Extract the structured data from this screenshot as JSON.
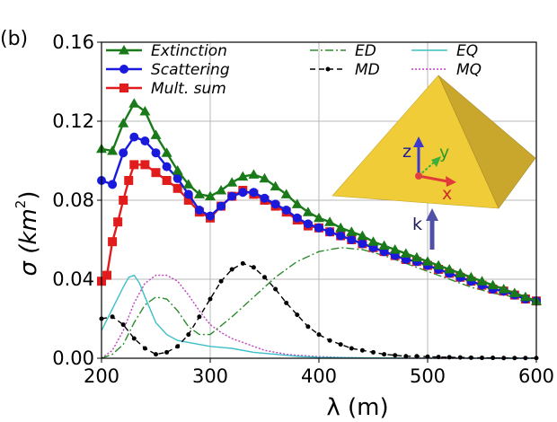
{
  "panel_label": "(b)",
  "chart_data": {
    "type": "line",
    "xlabel": "λ (m)",
    "ylabel_main": "σ (km",
    "ylabel_sup": "2",
    "ylabel_close": ")",
    "xlim": [
      200,
      600
    ],
    "ylim": [
      0,
      0.16
    ],
    "x_ticks": [
      200,
      300,
      400,
      500,
      600
    ],
    "x_tick_labels": [
      "200",
      "300",
      "400",
      "500",
      "600"
    ],
    "y_ticks": [
      0,
      0.04,
      0.08,
      0.12,
      0.16
    ],
    "y_tick_labels": [
      "0.00",
      "0.04",
      "0.08",
      "0.12",
      "0.16"
    ],
    "grid": true,
    "legend_placement": "top",
    "series": [
      {
        "name": "Extinction",
        "color": "#1a7a1a",
        "style": "solid",
        "marker": "triangle",
        "x": [
          200,
          210,
          220,
          230,
          240,
          250,
          260,
          270,
          280,
          290,
          300,
          310,
          320,
          330,
          340,
          350,
          360,
          370,
          380,
          390,
          400,
          410,
          420,
          430,
          440,
          450,
          460,
          470,
          480,
          490,
          500,
          510,
          520,
          530,
          540,
          550,
          560,
          570,
          580,
          590,
          600
        ],
        "y": [
          0.106,
          0.105,
          0.119,
          0.129,
          0.125,
          0.113,
          0.104,
          0.095,
          0.088,
          0.083,
          0.082,
          0.085,
          0.089,
          0.092,
          0.093,
          0.091,
          0.087,
          0.083,
          0.078,
          0.074,
          0.071,
          0.069,
          0.066,
          0.064,
          0.062,
          0.059,
          0.057,
          0.055,
          0.053,
          0.051,
          0.049,
          0.047,
          0.045,
          0.043,
          0.041,
          0.039,
          0.037,
          0.035,
          0.033,
          0.031,
          0.029
        ]
      },
      {
        "name": "Scattering",
        "color": "#1a1adc",
        "style": "solid",
        "marker": "circle",
        "x": [
          200,
          210,
          220,
          230,
          240,
          250,
          260,
          270,
          280,
          290,
          300,
          310,
          320,
          330,
          340,
          350,
          360,
          370,
          380,
          390,
          400,
          410,
          420,
          430,
          440,
          450,
          460,
          470,
          480,
          490,
          500,
          510,
          520,
          530,
          540,
          550,
          560,
          570,
          580,
          590,
          600
        ],
        "y": [
          0.09,
          0.088,
          0.104,
          0.112,
          0.11,
          0.104,
          0.097,
          0.091,
          0.083,
          0.075,
          0.072,
          0.077,
          0.082,
          0.084,
          0.084,
          0.081,
          0.078,
          0.075,
          0.071,
          0.068,
          0.066,
          0.064,
          0.062,
          0.06,
          0.058,
          0.056,
          0.054,
          0.052,
          0.05,
          0.049,
          0.047,
          0.045,
          0.043,
          0.041,
          0.039,
          0.037,
          0.035,
          0.034,
          0.032,
          0.03,
          0.029
        ]
      },
      {
        "name": "Mult. sum",
        "color": "#e11c1c",
        "style": "solid",
        "marker": "square",
        "x": [
          200,
          205,
          210,
          215,
          220,
          225,
          230,
          240,
          250,
          260,
          270,
          280,
          290,
          300,
          310,
          320,
          330,
          340,
          350,
          360,
          370,
          380,
          390,
          400,
          410,
          420,
          430,
          440,
          450,
          460,
          470,
          480,
          490,
          500,
          510,
          520,
          530,
          540,
          550,
          560,
          570,
          580,
          590,
          600
        ],
        "y": [
          0.039,
          0.042,
          0.059,
          0.069,
          0.08,
          0.09,
          0.098,
          0.098,
          0.094,
          0.09,
          0.086,
          0.08,
          0.074,
          0.071,
          0.077,
          0.082,
          0.085,
          0.083,
          0.08,
          0.077,
          0.074,
          0.07,
          0.067,
          0.066,
          0.064,
          0.062,
          0.06,
          0.058,
          0.056,
          0.054,
          0.052,
          0.05,
          0.049,
          0.047,
          0.045,
          0.043,
          0.041,
          0.039,
          0.037,
          0.035,
          0.034,
          0.032,
          0.03,
          0.029
        ]
      },
      {
        "name": "ED",
        "color": "#2e8b2e",
        "style": "dashdot",
        "marker": "none",
        "x": [
          200,
          210,
          220,
          230,
          240,
          250,
          260,
          270,
          280,
          290,
          300,
          320,
          340,
          360,
          380,
          400,
          420,
          440,
          460,
          480,
          500,
          520,
          540,
          560,
          580,
          600
        ],
        "y": [
          0.0,
          0.002,
          0.007,
          0.018,
          0.027,
          0.031,
          0.03,
          0.024,
          0.016,
          0.012,
          0.012,
          0.021,
          0.031,
          0.041,
          0.049,
          0.054,
          0.056,
          0.055,
          0.052,
          0.048,
          0.044,
          0.04,
          0.036,
          0.033,
          0.031,
          0.029
        ]
      },
      {
        "name": "MD",
        "color": "#000000",
        "style": "dashed",
        "marker": "dot",
        "x": [
          200,
          210,
          220,
          230,
          240,
          250,
          260,
          270,
          280,
          290,
          300,
          310,
          320,
          330,
          340,
          350,
          360,
          370,
          380,
          390,
          400,
          410,
          420,
          430,
          440,
          450,
          460,
          470,
          480,
          490,
          500,
          510,
          520,
          530,
          540,
          550,
          560,
          570,
          580,
          590,
          600
        ],
        "y": [
          0.02,
          0.021,
          0.017,
          0.01,
          0.005,
          0.002,
          0.003,
          0.006,
          0.012,
          0.021,
          0.03,
          0.039,
          0.045,
          0.048,
          0.046,
          0.041,
          0.035,
          0.028,
          0.022,
          0.016,
          0.012,
          0.009,
          0.007,
          0.005,
          0.004,
          0.003,
          0.002,
          0.0015,
          0.001,
          0.001,
          0.0008,
          0.0006,
          0.0005,
          0.0004,
          0.0003,
          0.0002,
          0.0002,
          0.0001,
          0.0001,
          0.0001,
          0.0001
        ]
      },
      {
        "name": "EQ",
        "color": "#3cbfc8",
        "style": "solid",
        "marker": "none",
        "x": [
          200,
          210,
          220,
          225,
          230,
          235,
          240,
          250,
          260,
          270,
          280,
          300,
          320,
          340,
          360,
          380,
          400,
          440,
          480,
          520,
          560,
          600
        ],
        "y": [
          0.014,
          0.025,
          0.036,
          0.041,
          0.042,
          0.038,
          0.031,
          0.018,
          0.012,
          0.009,
          0.008,
          0.006,
          0.005,
          0.003,
          0.002,
          0.001,
          0.0005,
          0.0002,
          0.0001,
          0.0001,
          0.0,
          0.0
        ]
      },
      {
        "name": "MQ",
        "color": "#c040c0",
        "style": "dotted",
        "marker": "none",
        "x": [
          200,
          210,
          220,
          230,
          240,
          250,
          260,
          270,
          280,
          290,
          300,
          310,
          320,
          330,
          340,
          350,
          360,
          370,
          380,
          400,
          420,
          440,
          460,
          500,
          550,
          600
        ],
        "y": [
          0.0,
          0.004,
          0.014,
          0.028,
          0.038,
          0.042,
          0.042,
          0.039,
          0.032,
          0.024,
          0.017,
          0.013,
          0.01,
          0.008,
          0.006,
          0.004,
          0.003,
          0.002,
          0.0015,
          0.0008,
          0.0004,
          0.0002,
          0.0001,
          0.0,
          0.0,
          0.0
        ]
      }
    ],
    "inset": {
      "axis_labels": {
        "z": "z",
        "y": "y",
        "x": "x",
        "k": "k"
      },
      "pyramid_color": "#f2cf3c"
    }
  }
}
